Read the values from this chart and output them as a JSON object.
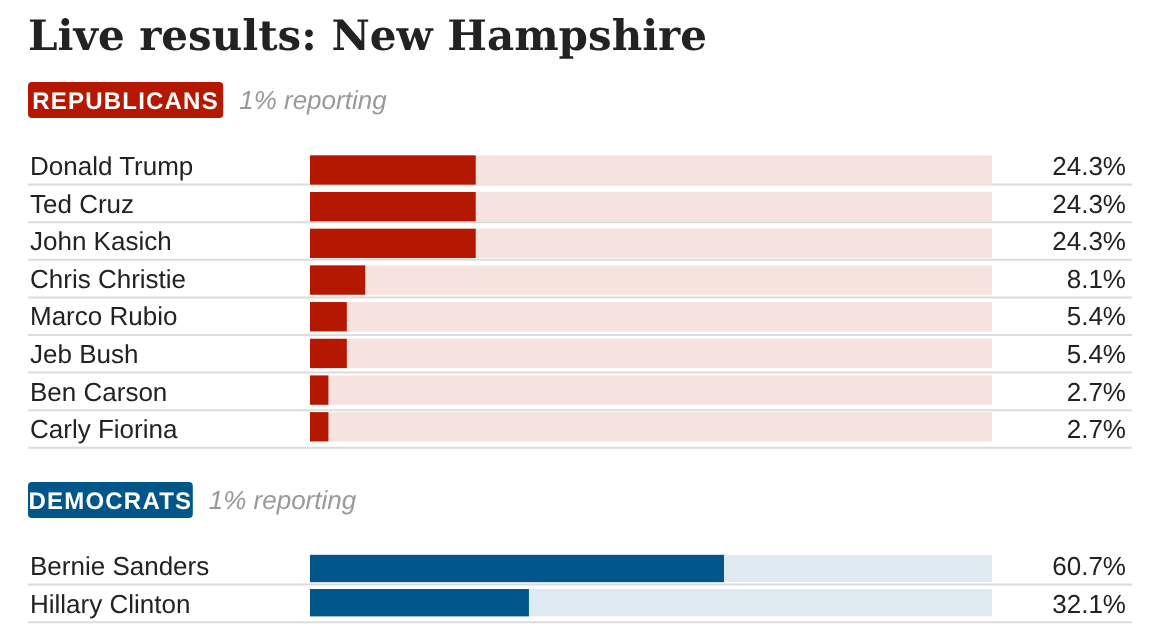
{
  "chart_data": [
    {
      "type": "bar",
      "orientation": "horizontal",
      "title": "Live results: New Hampshire",
      "subtitle": "1% reporting",
      "categories": [
        "Donald Trump",
        "Ted Cruz",
        "John Kasich",
        "Chris Christie",
        "Marco Rubio",
        "Jeb Bush",
        "Ben Carson",
        "Carly Fiorina"
      ],
      "series": [
        {
          "name": "REPUBLICANS",
          "color": "#b51800",
          "values": [
            24.3,
            24.3,
            24.3,
            8.1,
            5.4,
            5.4,
            2.7,
            2.7
          ],
          "value_labels": [
            "24.3%",
            "24.3%",
            "24.3%",
            "8.1%",
            "5.4%",
            "5.4%",
            "2.7%",
            "2.7%"
          ]
        }
      ],
      "xlim": [
        0,
        100
      ],
      "tick_labels": "y",
      "grid": "y",
      "legend": "top left"
    },
    {
      "type": "bar",
      "orientation": "horizontal",
      "subtitle": "1% reporting",
      "categories": [
        "Bernie Sanders",
        "Hillary Clinton"
      ],
      "series": [
        {
          "name": "DEMOCRATS",
          "color": "#005689",
          "values": [
            60.7,
            32.1
          ],
          "value_labels": [
            "60.7%",
            "32.1%"
          ]
        }
      ],
      "xlim": [
        0,
        100
      ],
      "tick_labels": "y",
      "grid": "y",
      "legend": "top left"
    }
  ]
}
